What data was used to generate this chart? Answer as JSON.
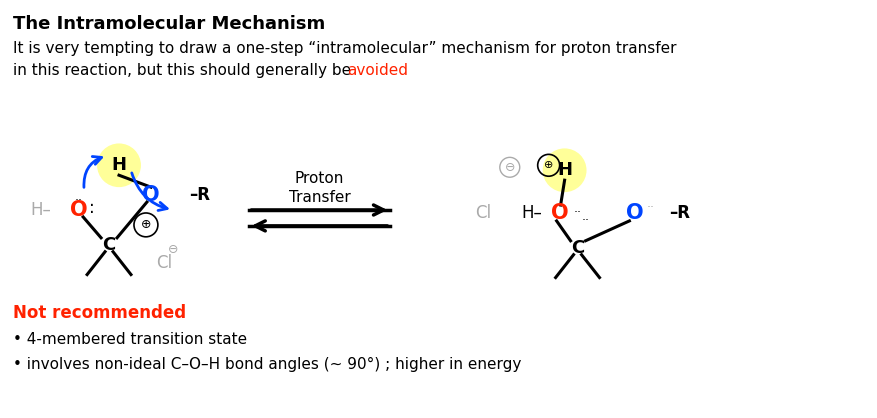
{
  "title": "The Intramolecular Mechanism",
  "line1": "It is very tempting to draw a one-step “intramolecular” mechanism for proton transfer",
  "line2_black": "in this reaction, but this should generally be ",
  "line2_red": "avoided",
  "not_recommended": "Not recommended",
  "bullet1": "• 4-membered transition state",
  "bullet2": "• involves non-ideal C–O–H bond angles (∼ 90°) ; higher in energy",
  "proton_transfer": "Proton\nTransfer",
  "bg_color": "#ffffff",
  "text_color": "#000000",
  "red_color": "#ff2200",
  "blue_color": "#0044ff",
  "gray_color": "#aaaaaa",
  "yellow_hl": "#ffff99",
  "arrow_blue": "#0044ff"
}
